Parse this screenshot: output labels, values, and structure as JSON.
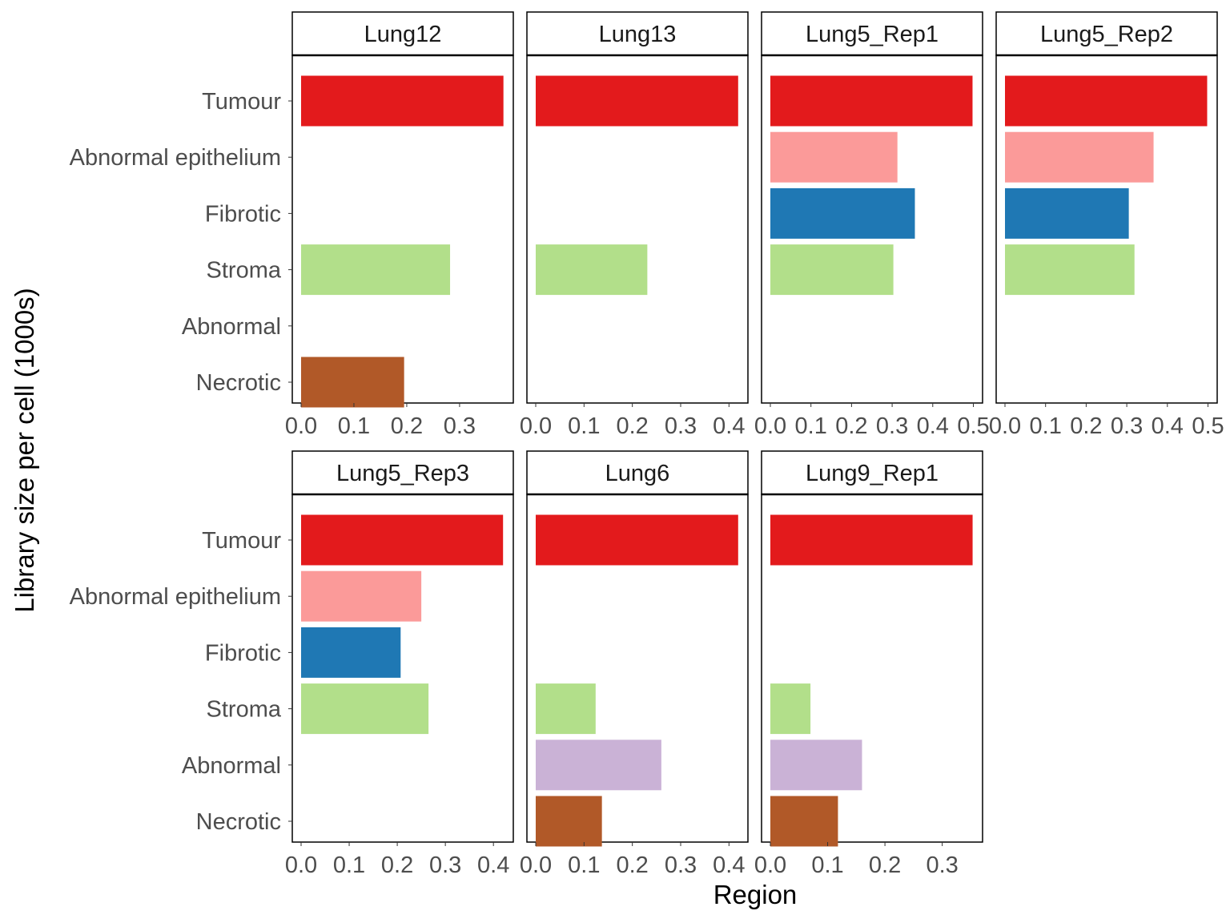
{
  "chart_data": {
    "type": "bar",
    "orientation": "horizontal",
    "xlabel": "Region",
    "ylabel": "Library size per cell (1000s)",
    "categories": [
      "Tumour",
      "Abnormal epithelium",
      "Fibrotic",
      "Stroma",
      "Abnormal",
      "Necrotic"
    ],
    "colors": {
      "Tumour": "#e31a1c",
      "Abnormal epithelium": "#fb9a99",
      "Fibrotic": "#1f78b4",
      "Stroma": "#b2df8a",
      "Abnormal": "#cab2d6",
      "Necrotic": "#b15928"
    },
    "grid": false,
    "legend": "none",
    "panels": [
      {
        "name": "Lung12",
        "xlim": [
          0,
          0.385
        ],
        "xticks": [
          "0.0",
          "0.1",
          "0.2",
          "0.3"
        ],
        "values": {
          "Tumour": 0.383,
          "Stroma": 0.282,
          "Necrotic": 0.195
        }
      },
      {
        "name": "Lung13",
        "xlim": [
          0,
          0.421
        ],
        "xticks": [
          "0.0",
          "0.1",
          "0.2",
          "0.3",
          "0.4"
        ],
        "values": {
          "Tumour": 0.419,
          "Stroma": 0.231
        }
      },
      {
        "name": "Lung5_Rep1",
        "xlim": [
          0,
          0.501
        ],
        "xticks": [
          "0.0",
          "0.1",
          "0.2",
          "0.3",
          "0.4",
          "0.5"
        ],
        "values": {
          "Tumour": 0.498,
          "Abnormal epithelium": 0.313,
          "Fibrotic": 0.356,
          "Stroma": 0.303
        }
      },
      {
        "name": "Lung5_Rep2",
        "xlim": [
          0,
          0.501
        ],
        "xticks": [
          "0.0",
          "0.1",
          "0.2",
          "0.3",
          "0.4",
          "0.5"
        ],
        "values": {
          "Tumour": 0.498,
          "Abnormal epithelium": 0.366,
          "Fibrotic": 0.305,
          "Stroma": 0.319
        }
      },
      {
        "name": "Lung5_Rep3",
        "xlim": [
          0,
          0.423
        ],
        "xticks": [
          "0.0",
          "0.1",
          "0.2",
          "0.3",
          "0.4"
        ],
        "values": {
          "Tumour": 0.42,
          "Abnormal epithelium": 0.25,
          "Fibrotic": 0.207,
          "Stroma": 0.265
        }
      },
      {
        "name": "Lung6",
        "xlim": [
          0,
          0.421
        ],
        "xticks": [
          "0.0",
          "0.1",
          "0.2",
          "0.3",
          "0.4"
        ],
        "values": {
          "Tumour": 0.419,
          "Stroma": 0.124,
          "Abnormal": 0.26,
          "Necrotic": 0.137
        }
      },
      {
        "name": "Lung9_Rep1",
        "xlim": [
          0,
          0.355
        ],
        "xticks": [
          "0.0",
          "0.1",
          "0.2",
          "0.3"
        ],
        "values": {
          "Tumour": 0.353,
          "Stroma": 0.07,
          "Abnormal": 0.16,
          "Necrotic": 0.118
        }
      }
    ]
  }
}
